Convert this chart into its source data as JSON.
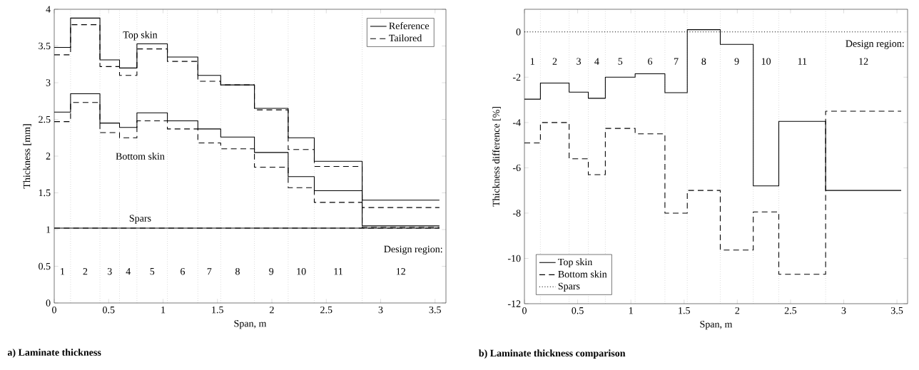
{
  "chart_data": [
    {
      "type": "step",
      "xlabel": "Span, m",
      "ylabel": "Thickness [mm]",
      "xlim": [
        0,
        3.6
      ],
      "ylim": [
        0,
        4
      ],
      "xticks": [
        0,
        0.5,
        1,
        1.5,
        2,
        2.5,
        3,
        3.5
      ],
      "yticks": [
        0,
        0.5,
        1,
        1.5,
        2,
        2.5,
        3,
        3.5,
        4
      ],
      "x": [
        0,
        0.15,
        0.42,
        0.6,
        0.76,
        1.04,
        1.32,
        1.53,
        1.84,
        2.15,
        2.39,
        2.83,
        3.54
      ],
      "series": [
        {
          "name": "Reference",
          "color": "#000000",
          "line_style": "solid",
          "values": [
            3.48,
            3.88,
            3.31,
            3.2,
            3.53,
            3.35,
            3.1,
            2.97,
            2.65,
            2.25,
            1.93,
            1.4,
            1.4
          ]
        },
        {
          "name": "Tailored",
          "color": "#000000",
          "line_style": "dashed",
          "values": [
            3.38,
            3.79,
            3.22,
            3.1,
            3.46,
            3.29,
            3.02,
            2.97,
            2.63,
            2.09,
            1.86,
            1.3,
            1.3
          ]
        },
        {
          "color": "#000000",
          "line_style": "solid",
          "values": [
            2.6,
            2.85,
            2.45,
            2.39,
            2.59,
            2.48,
            2.37,
            2.26,
            2.05,
            1.72,
            1.53,
            1.05,
            1.05
          ]
        },
        {
          "color": "#000000",
          "line_style": "dashed",
          "values": [
            2.47,
            2.73,
            2.32,
            2.25,
            2.48,
            2.37,
            2.18,
            2.1,
            1.85,
            1.57,
            1.37,
            1.03,
            1.03
          ]
        },
        {
          "color": "#000000",
          "line_style": "solid",
          "values": [
            1.02,
            1.02,
            1.02,
            1.02,
            1.02,
            1.02,
            1.02,
            1.02,
            1.02,
            1.02,
            1.02,
            1.02,
            1.02
          ]
        },
        {
          "color": "#000000",
          "line_style": "dashed",
          "values": [
            1.02,
            1.02,
            1.02,
            1.02,
            1.02,
            1.02,
            1.02,
            1.02,
            1.02,
            1.02,
            1.02,
            1.02,
            1.02
          ]
        }
      ],
      "legend": "top right",
      "ref_lines": [
        {
          "axis": "x",
          "value": 0.15,
          "color": "#808080",
          "line_style": "dotted"
        },
        {
          "axis": "x",
          "value": 0.42,
          "color": "#808080",
          "line_style": "dotted"
        },
        {
          "axis": "x",
          "value": 0.6,
          "color": "#808080",
          "line_style": "dotted"
        },
        {
          "axis": "x",
          "value": 0.76,
          "color": "#808080",
          "line_style": "dotted"
        },
        {
          "axis": "x",
          "value": 1.04,
          "color": "#808080",
          "line_style": "dotted"
        },
        {
          "axis": "x",
          "value": 1.32,
          "color": "#808080",
          "line_style": "dotted"
        },
        {
          "axis": "x",
          "value": 1.53,
          "color": "#808080",
          "line_style": "dotted"
        },
        {
          "axis": "x",
          "value": 1.84,
          "color": "#808080",
          "line_style": "dotted"
        },
        {
          "axis": "x",
          "value": 2.15,
          "color": "#808080",
          "line_style": "dotted"
        },
        {
          "axis": "x",
          "value": 2.39,
          "color": "#808080",
          "line_style": "dotted"
        },
        {
          "axis": "x",
          "value": 2.83,
          "color": "#808080",
          "line_style": "dotted"
        }
      ],
      "annotations": [
        "**a) Laminate thickness**",
        "Design region:",
        "1",
        "2",
        "3",
        "4",
        "5",
        "6",
        "7",
        "8",
        "9",
        "10",
        "11",
        "12",
        "Top skin",
        "Bottom skin",
        "Spars"
      ]
    },
    {
      "type": "step",
      "xlabel": "Span, m",
      "ylabel": "Thickness difference [%]",
      "xlim": [
        0,
        3.6
      ],
      "ylim": [
        -12,
        1
      ],
      "xticks": [
        0,
        0.5,
        1,
        1.5,
        2,
        2.5,
        3,
        3.5
      ],
      "yticks": [
        -12,
        -10,
        -8,
        -6,
        -4,
        -2,
        0
      ],
      "x": [
        0,
        0.15,
        0.42,
        0.6,
        0.76,
        1.04,
        1.32,
        1.53,
        1.84,
        2.15,
        2.39,
        2.83,
        3.54
      ],
      "series": [
        {
          "name": "Top skin",
          "color": "#000000",
          "line_style": "solid",
          "values": [
            -2.97,
            -2.26,
            -2.66,
            -2.93,
            -2.0,
            -1.85,
            -2.68,
            0.1,
            -0.55,
            -6.8,
            -3.95,
            -7.0,
            -7.0
          ]
        },
        {
          "name": "Bottom skin",
          "color": "#000000",
          "line_style": "dashed",
          "values": [
            -4.9,
            -4.0,
            -5.6,
            -6.3,
            -4.26,
            -4.5,
            -8.0,
            -7.0,
            -9.63,
            -7.95,
            -10.7,
            -3.5,
            -3.5
          ]
        },
        {
          "name": "Spars",
          "color": "#000000",
          "line_style": "dotted",
          "values": [
            0,
            0,
            0,
            0,
            0,
            0,
            0,
            0,
            0,
            0,
            0,
            0,
            0
          ]
        }
      ],
      "legend": "bottom left",
      "ref_lines": [
        {
          "axis": "x",
          "value": 0.15,
          "color": "#808080",
          "line_style": "dotted"
        },
        {
          "axis": "x",
          "value": 0.42,
          "color": "#808080",
          "line_style": "dotted"
        },
        {
          "axis": "x",
          "value": 0.6,
          "color": "#808080",
          "line_style": "dotted"
        },
        {
          "axis": "x",
          "value": 0.76,
          "color": "#808080",
          "line_style": "dotted"
        },
        {
          "axis": "x",
          "value": 1.04,
          "color": "#808080",
          "line_style": "dotted"
        },
        {
          "axis": "x",
          "value": 1.32,
          "color": "#808080",
          "line_style": "dotted"
        },
        {
          "axis": "x",
          "value": 1.53,
          "color": "#808080",
          "line_style": "dotted"
        },
        {
          "axis": "x",
          "value": 1.84,
          "color": "#808080",
          "line_style": "dotted"
        },
        {
          "axis": "x",
          "value": 2.15,
          "color": "#808080",
          "line_style": "dotted"
        },
        {
          "axis": "x",
          "value": 2.39,
          "color": "#808080",
          "line_style": "dotted"
        },
        {
          "axis": "x",
          "value": 2.83,
          "color": "#808080",
          "line_style": "dotted"
        }
      ],
      "annotations": [
        "**b) Laminate thickness comparison**",
        "Design region:",
        "1",
        "2",
        "3",
        "4",
        "5",
        "6",
        "7",
        "8",
        "9",
        "10",
        "11",
        "12"
      ]
    }
  ]
}
